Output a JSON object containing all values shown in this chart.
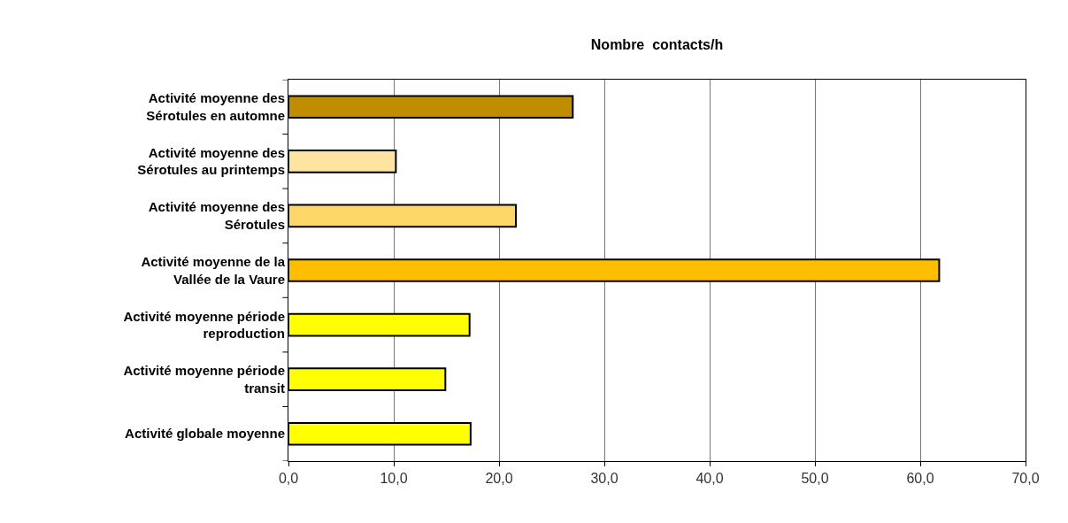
{
  "chart_data": {
    "type": "bar",
    "orientation": "horizontal",
    "title": "Nombre  contacts/h",
    "categories": [
      "Activité moyenne des Sérotules en automne",
      "Activité moyenne des Sérotules au printemps",
      "Activité moyenne des Sérotules",
      "Activité moyenne de la Vallée de la Vaure",
      "Activité moyenne période reproduction",
      "Activité moyenne période transit",
      "Activité globale moyenne"
    ],
    "values": [
      27.0,
      10.2,
      21.6,
      61.8,
      17.2,
      14.9,
      17.3
    ],
    "colors": [
      "#c08c00",
      "#fde4a0",
      "#fdd868",
      "#ffbf00",
      "#ffff00",
      "#ffff00",
      "#ffff00"
    ],
    "xlim": [
      0,
      70
    ],
    "xticks": [
      {
        "value": 0,
        "label": "0,0"
      },
      {
        "value": 10,
        "label": "10,0"
      },
      {
        "value": 20,
        "label": "20,0"
      },
      {
        "value": 30,
        "label": "30,0"
      },
      {
        "value": 40,
        "label": "40,0"
      },
      {
        "value": 50,
        "label": "50,0"
      },
      {
        "value": 60,
        "label": "60,0"
      },
      {
        "value": 70,
        "label": "70,0"
      }
    ],
    "grid": "x"
  }
}
